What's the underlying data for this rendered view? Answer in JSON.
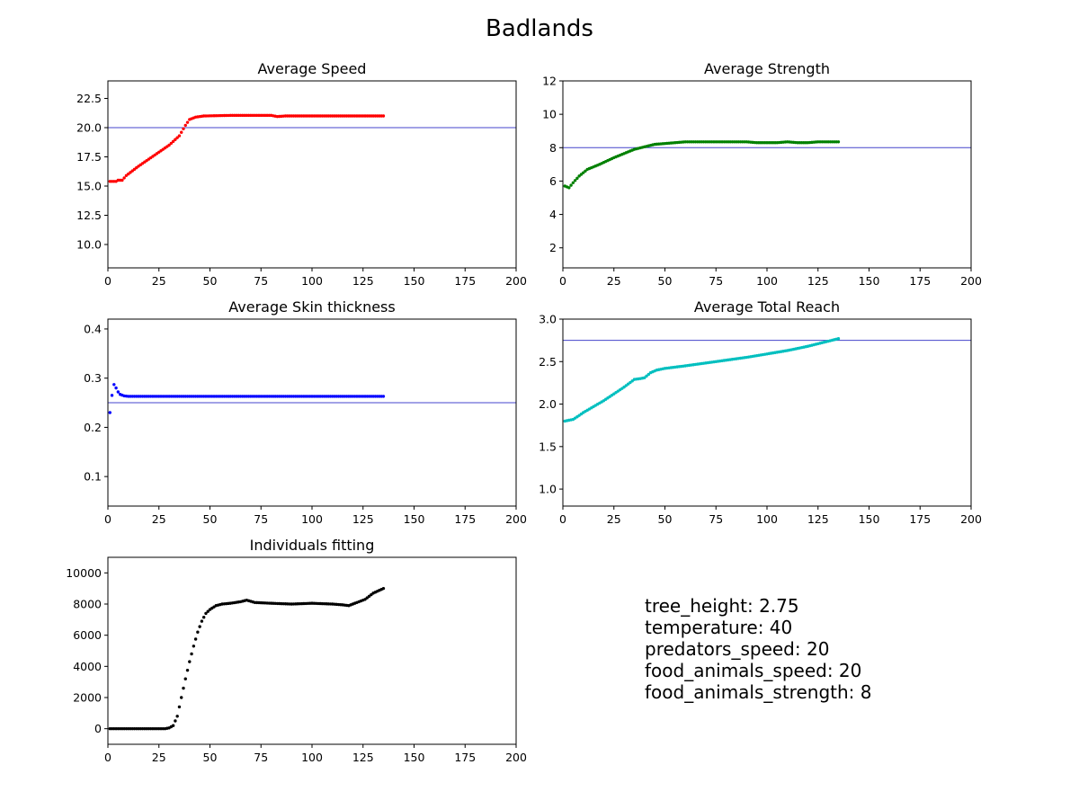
{
  "figure": {
    "title": "Badlands"
  },
  "info_lines": [
    "tree_height: 2.75",
    "temperature: 40",
    "predators_speed: 20",
    "food_animals_speed: 20",
    "food_animals_strength: 8"
  ],
  "chart_data": [
    {
      "id": "speed",
      "type": "scatter",
      "title": "Average Speed",
      "xlabel": "",
      "ylabel": "",
      "xlim": [
        0,
        200
      ],
      "ylim": [
        8.0,
        24.0
      ],
      "xticks": [
        0,
        25,
        50,
        75,
        100,
        125,
        150,
        175,
        200
      ],
      "yticks": [
        10.0,
        12.5,
        15.0,
        17.5,
        20.0,
        22.5
      ],
      "ytick_decimals": 1,
      "reference_line": 20.0,
      "reference_color": "#4444cc",
      "color": "#ff0000",
      "series": [
        {
          "x_start": 1,
          "x_end": 135,
          "x_step": 1,
          "keypoints": [
            [
              1,
              15.4
            ],
            [
              4,
              15.4
            ],
            [
              5,
              15.5
            ],
            [
              7,
              15.5
            ],
            [
              9,
              15.9
            ],
            [
              12,
              16.3
            ],
            [
              15,
              16.7
            ],
            [
              20,
              17.3
            ],
            [
              25,
              17.9
            ],
            [
              30,
              18.5
            ],
            [
              35,
              19.3
            ],
            [
              38,
              20.2
            ],
            [
              40,
              20.7
            ],
            [
              43,
              20.9
            ],
            [
              47,
              21.0
            ],
            [
              60,
              21.05
            ],
            [
              80,
              21.05
            ],
            [
              83,
              20.95
            ],
            [
              87,
              21.0
            ],
            [
              135,
              21.0
            ]
          ]
        }
      ]
    },
    {
      "id": "strength",
      "type": "scatter",
      "title": "Average Strength",
      "xlabel": "",
      "ylabel": "",
      "xlim": [
        0,
        200
      ],
      "ylim": [
        0.8,
        12.0
      ],
      "xticks": [
        0,
        25,
        50,
        75,
        100,
        125,
        150,
        175,
        200
      ],
      "yticks": [
        2,
        4,
        6,
        8,
        10,
        12
      ],
      "ytick_decimals": 0,
      "reference_line": 8.0,
      "reference_color": "#4444cc",
      "color": "#008000",
      "series": [
        {
          "x_start": 1,
          "x_end": 135,
          "x_step": 1,
          "keypoints": [
            [
              1,
              5.7
            ],
            [
              3,
              5.6
            ],
            [
              5,
              5.9
            ],
            [
              8,
              6.3
            ],
            [
              12,
              6.7
            ],
            [
              18,
              7.0
            ],
            [
              25,
              7.4
            ],
            [
              35,
              7.9
            ],
            [
              45,
              8.2
            ],
            [
              55,
              8.3
            ],
            [
              60,
              8.35
            ],
            [
              90,
              8.35
            ],
            [
              95,
              8.3
            ],
            [
              105,
              8.3
            ],
            [
              110,
              8.35
            ],
            [
              115,
              8.3
            ],
            [
              120,
              8.3
            ],
            [
              125,
              8.35
            ],
            [
              135,
              8.35
            ]
          ]
        }
      ]
    },
    {
      "id": "skin",
      "type": "scatter",
      "title": "Average Skin thickness",
      "xlabel": "",
      "ylabel": "",
      "xlim": [
        0,
        200
      ],
      "ylim": [
        0.04,
        0.42
      ],
      "xticks": [
        0,
        25,
        50,
        75,
        100,
        125,
        150,
        175,
        200
      ],
      "yticks": [
        0.1,
        0.2,
        0.3,
        0.4
      ],
      "ytick_decimals": 1,
      "reference_line": 0.25,
      "reference_color": "#4444cc",
      "color": "#0000ff",
      "series": [
        {
          "x_start": 1,
          "x_end": 135,
          "x_step": 1,
          "keypoints": [
            [
              1,
              0.23
            ],
            [
              2,
              0.265
            ],
            [
              3,
              0.287
            ],
            [
              4,
              0.28
            ],
            [
              5,
              0.272
            ],
            [
              6,
              0.267
            ],
            [
              8,
              0.264
            ],
            [
              10,
              0.263
            ],
            [
              135,
              0.263
            ]
          ]
        }
      ]
    },
    {
      "id": "reach",
      "type": "scatter",
      "title": "Average Total Reach",
      "xlabel": "",
      "ylabel": "",
      "xlim": [
        0,
        200
      ],
      "ylim": [
        0.8,
        3.0
      ],
      "xticks": [
        0,
        25,
        50,
        75,
        100,
        125,
        150,
        175,
        200
      ],
      "yticks": [
        1.0,
        1.5,
        2.0,
        2.5,
        3.0
      ],
      "ytick_decimals": 1,
      "reference_line": 2.75,
      "reference_color": "#4444cc",
      "color": "#00bfbf",
      "series": [
        {
          "x_start": 1,
          "x_end": 135,
          "x_step": 1,
          "keypoints": [
            [
              1,
              1.8
            ],
            [
              5,
              1.82
            ],
            [
              7,
              1.85
            ],
            [
              10,
              1.9
            ],
            [
              15,
              1.97
            ],
            [
              20,
              2.04
            ],
            [
              25,
              2.12
            ],
            [
              30,
              2.2
            ],
            [
              35,
              2.29
            ],
            [
              38,
              2.3
            ],
            [
              40,
              2.31
            ],
            [
              43,
              2.37
            ],
            [
              46,
              2.4
            ],
            [
              50,
              2.42
            ],
            [
              60,
              2.45
            ],
            [
              75,
              2.5
            ],
            [
              90,
              2.55
            ],
            [
              100,
              2.59
            ],
            [
              110,
              2.63
            ],
            [
              120,
              2.68
            ],
            [
              130,
              2.74
            ],
            [
              135,
              2.77
            ]
          ]
        }
      ]
    },
    {
      "id": "individuals",
      "type": "scatter",
      "title": "Individuals fitting",
      "xlabel": "",
      "ylabel": "",
      "xlim": [
        0,
        200
      ],
      "ylim": [
        -1000,
        11000
      ],
      "xticks": [
        0,
        25,
        50,
        75,
        100,
        125,
        150,
        175,
        200
      ],
      "yticks": [
        0,
        2000,
        4000,
        6000,
        8000,
        10000
      ],
      "ytick_decimals": 0,
      "reference_line": null,
      "color": "#000000",
      "series": [
        {
          "x_start": 1,
          "x_end": 135,
          "x_step": 1,
          "keypoints": [
            [
              1,
              0
            ],
            [
              28,
              0
            ],
            [
              30,
              50
            ],
            [
              32,
              200
            ],
            [
              34,
              800
            ],
            [
              36,
              2000
            ],
            [
              38,
              3200
            ],
            [
              40,
              4300
            ],
            [
              42,
              5300
            ],
            [
              44,
              6200
            ],
            [
              46,
              6900
            ],
            [
              48,
              7400
            ],
            [
              50,
              7650
            ],
            [
              53,
              7900
            ],
            [
              56,
              8000
            ],
            [
              60,
              8050
            ],
            [
              65,
              8150
            ],
            [
              68,
              8250
            ],
            [
              72,
              8100
            ],
            [
              80,
              8050
            ],
            [
              90,
              8000
            ],
            [
              100,
              8050
            ],
            [
              110,
              8000
            ],
            [
              115,
              7950
            ],
            [
              118,
              7900
            ],
            [
              122,
              8100
            ],
            [
              126,
              8300
            ],
            [
              130,
              8700
            ],
            [
              135,
              9000
            ]
          ]
        }
      ]
    }
  ]
}
